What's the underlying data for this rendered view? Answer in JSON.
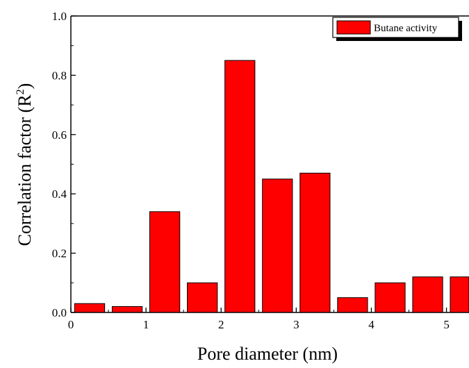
{
  "chart_data": {
    "type": "bar",
    "xlabel": "Pore diameter (nm)",
    "ylabel": "Correlation factor (R",
    "ylabel_superscript": "2",
    "ylabel_suffix": ")",
    "xlim": [
      0,
      5.3
    ],
    "ylim": [
      0,
      1.0
    ],
    "x_ticks": [
      "0",
      "1",
      "2",
      "3",
      "4",
      "5"
    ],
    "y_ticks": [
      "0.0",
      "0.2",
      "0.4",
      "0.6",
      "0.8",
      "1.0"
    ],
    "bar_width": 0.4,
    "legend_position": "top-right",
    "series": [
      {
        "name": "Butane activity",
        "color": "#ff0000",
        "x": [
          0.25,
          0.75,
          1.25,
          1.75,
          2.25,
          2.75,
          3.25,
          3.75,
          4.25,
          4.75,
          5.25
        ],
        "values": [
          0.03,
          0.02,
          0.34,
          0.1,
          0.85,
          0.45,
          0.47,
          0.05,
          0.1,
          0.12,
          0.12
        ]
      }
    ]
  }
}
